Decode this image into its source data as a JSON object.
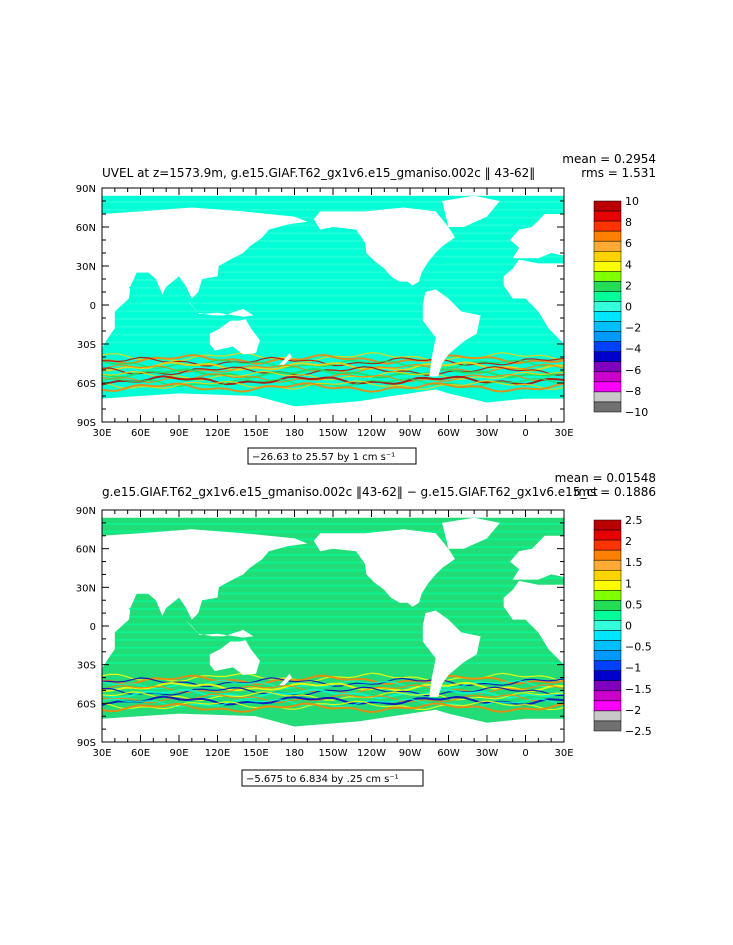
{
  "panels": [
    {
      "title": "UVEL at z=1573.9m, g.e15.GIAF.T62_gx1v6.e15_gmaniso.002c ‖ 43-62‖",
      "mean_text": "mean = 0.2954",
      "rms_text": "rms = 1.531",
      "range_text": "−26.63 to 25.57 by 1 cm s⁻¹",
      "colorbar_labels": [
        "10",
        "8",
        "6",
        "4",
        "2",
        "0",
        "−2",
        "−4",
        "−6",
        "−8",
        "−10"
      ],
      "colorbar_colors": [
        "#bb0000",
        "#e60000",
        "#ff3300",
        "#ff8000",
        "#ffaa33",
        "#ffd200",
        "#ffff00",
        "#80ff00",
        "#22dd55",
        "#00ff99",
        "#33ffdd",
        "#00e6ff",
        "#00bfff",
        "#0099ff",
        "#0040ff",
        "#0000cc",
        "#8000c0",
        "#cc00cc",
        "#ff00ff",
        "#c8c8c8",
        "#707070"
      ],
      "field_color": "#00ffd4",
      "band_colors": [
        "#ffd200",
        "#ff8000",
        "#bb0000",
        "#22dd55"
      ]
    },
    {
      "title": "g.e15.GIAF.T62_gx1v6.e15_gmaniso.002c ‖43-62‖ − g.e15.GIAF.T62_gx1v6.e15_ct",
      "mean_text": "mean = 0.01548",
      "rms_text": "rms = 0.1886",
      "range_text": "−5.675 to 6.834 by .25 cm s⁻¹",
      "colorbar_labels": [
        "2.5",
        "2",
        "1.5",
        "1",
        "0.5",
        "0",
        "−0.5",
        "−1",
        "−1.5",
        "−2",
        "−2.5"
      ],
      "colorbar_colors": [
        "#bb0000",
        "#e60000",
        "#ff3300",
        "#ff8000",
        "#ffaa33",
        "#ffd200",
        "#ffff00",
        "#80ff00",
        "#22dd55",
        "#00ff99",
        "#33ffdd",
        "#00e6ff",
        "#00bfff",
        "#0099ff",
        "#0040ff",
        "#0000cc",
        "#8000c0",
        "#cc00cc",
        "#ff00ff",
        "#c8c8c8",
        "#707070"
      ],
      "field_color": "#22dd77",
      "band_colors": [
        "#ffff00",
        "#ff8000",
        "#0000cc",
        "#00ffd4"
      ]
    }
  ],
  "map": {
    "x_ticks": [
      "30E",
      "60E",
      "90E",
      "120E",
      "150E",
      "180",
      "150W",
      "120W",
      "90W",
      "60W",
      "30W",
      "0",
      "30E"
    ],
    "y_ticks": [
      "90N",
      "60N",
      "30N",
      "0",
      "30S",
      "60S",
      "90S"
    ],
    "lon_range": [
      30,
      390
    ],
    "lat_range": [
      -90,
      90
    ]
  }
}
